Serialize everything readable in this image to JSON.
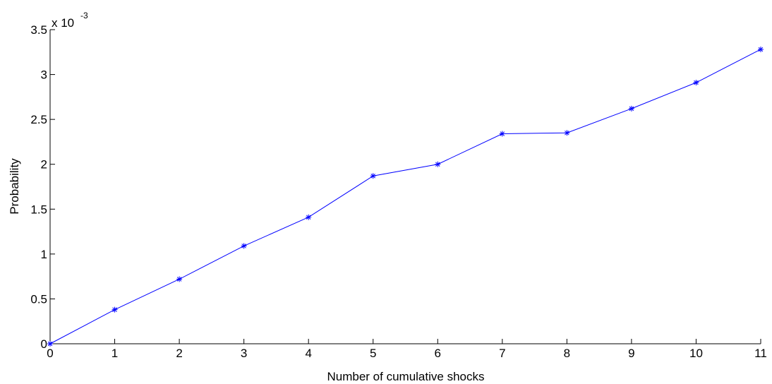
{
  "chart_data": {
    "type": "line",
    "title": "",
    "xlabel": "Number of cumulative shocks",
    "ylabel": "Probability",
    "y_multiplier_label": "x 10",
    "y_multiplier_exponent": "-3",
    "xlim": [
      0,
      11
    ],
    "ylim": [
      0,
      3.5
    ],
    "xticks": [
      "0",
      "1",
      "2",
      "3",
      "4",
      "5",
      "6",
      "7",
      "8",
      "9",
      "10",
      "11"
    ],
    "yticks": [
      "0",
      "0.5",
      "1",
      "1.5",
      "2",
      "2.5",
      "3",
      "3.5"
    ],
    "grid": false,
    "series": [
      {
        "marker": "asterisk",
        "color": "#0000ff",
        "x": [
          0,
          1,
          2,
          3,
          4,
          5,
          6,
          7,
          8,
          9,
          10,
          11
        ],
        "y": [
          0,
          0.38,
          0.72,
          1.09,
          1.41,
          1.87,
          2.0,
          2.34,
          2.35,
          2.62,
          2.91,
          3.28
        ]
      }
    ]
  }
}
